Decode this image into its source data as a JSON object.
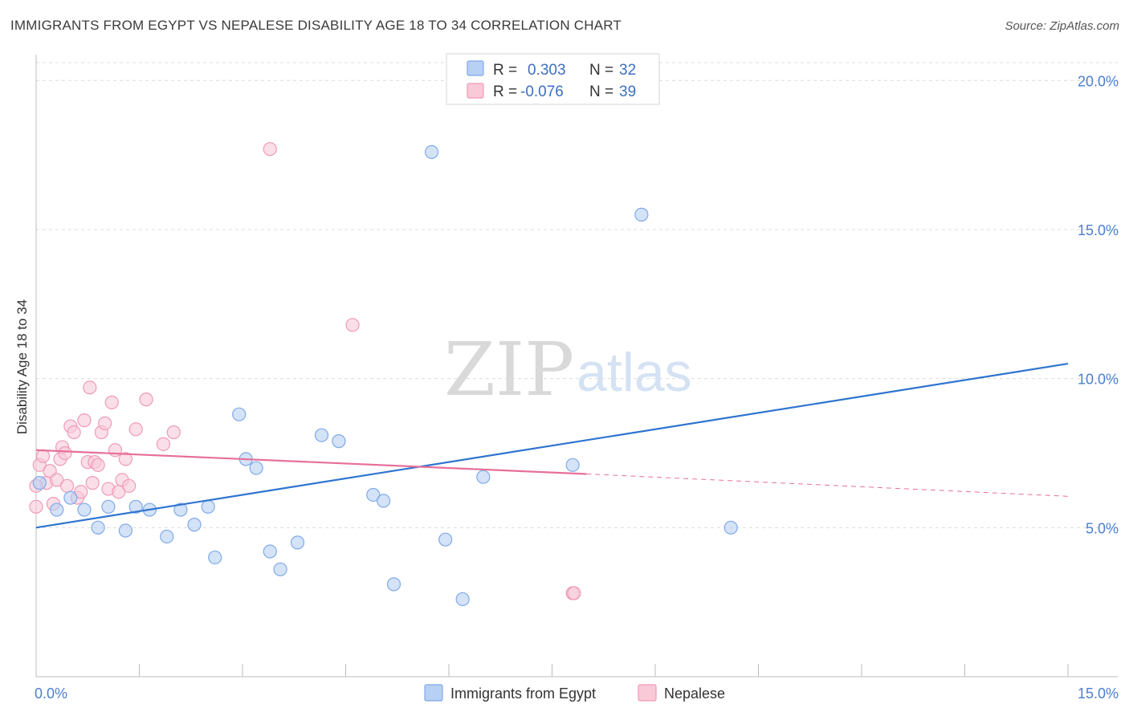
{
  "title": "IMMIGRANTS FROM EGYPT VS NEPALESE DISABILITY AGE 18 TO 34 CORRELATION CHART",
  "source": "Source: ZipAtlas.com",
  "watermark": {
    "zip": "ZIP",
    "atlas": "atlas"
  },
  "legend": {
    "r_label": "R =",
    "n_label": "N =",
    "rows": [
      {
        "r": "0.303",
        "n": "32"
      },
      {
        "r": "-0.076",
        "n": "39"
      }
    ]
  },
  "chart_data": {
    "type": "scatter",
    "title": "IMMIGRANTS FROM EGYPT VS NEPALESE DISABILITY AGE 18 TO 34 CORRELATION CHART",
    "xlabel": "",
    "ylabel": "Disability Age 18 to 34",
    "xlim": [
      0,
      15
    ],
    "ylim": [
      0,
      20.6
    ],
    "x_tick_labels": [
      "0.0%",
      "15.0%"
    ],
    "y_ticks": [
      5,
      10,
      15,
      20
    ],
    "y_tick_labels": [
      "5.0%",
      "10.0%",
      "15.0%",
      "20.0%"
    ],
    "grid": "horizontal dashed",
    "legend_position": "top-center and bottom",
    "series": [
      {
        "name": "Immigrants from Egypt",
        "color": "#7fa9e8",
        "fill": "#b8d0f3",
        "line_color": "#2f74d0",
        "r": 0.303,
        "n": 32,
        "trend": {
          "x": [
            0,
            15
          ],
          "y": [
            5.0,
            10.5
          ]
        },
        "points": [
          [
            0.05,
            6.5
          ],
          [
            0.3,
            5.6
          ],
          [
            0.5,
            6.0
          ],
          [
            0.7,
            5.6
          ],
          [
            0.9,
            5.0
          ],
          [
            1.05,
            5.7
          ],
          [
            1.3,
            4.9
          ],
          [
            1.45,
            5.7
          ],
          [
            1.65,
            5.6
          ],
          [
            1.9,
            4.7
          ],
          [
            2.1,
            5.6
          ],
          [
            2.3,
            5.1
          ],
          [
            2.5,
            5.7
          ],
          [
            2.6,
            4.0
          ],
          [
            2.95,
            8.8
          ],
          [
            3.05,
            7.3
          ],
          [
            3.2,
            7.0
          ],
          [
            3.4,
            4.2
          ],
          [
            3.55,
            3.6
          ],
          [
            3.8,
            4.5
          ],
          [
            4.15,
            8.1
          ],
          [
            4.4,
            7.9
          ],
          [
            4.9,
            6.1
          ],
          [
            5.05,
            5.9
          ],
          [
            5.2,
            3.1
          ],
          [
            5.75,
            17.6
          ],
          [
            5.95,
            4.6
          ],
          [
            6.2,
            2.6
          ],
          [
            6.5,
            6.7
          ],
          [
            7.8,
            7.1
          ],
          [
            8.8,
            15.5
          ],
          [
            10.1,
            5.0
          ]
        ]
      },
      {
        "name": "Nepalese",
        "color": "#f09ab5",
        "fill": "#f9c9d8",
        "line_color": "#e6709a",
        "r": -0.076,
        "n": 39,
        "trend": {
          "x": [
            0,
            8.0
          ],
          "y": [
            7.6,
            6.8
          ],
          "dashed_x": [
            8.0,
            15
          ],
          "dashed_y": [
            6.8,
            6.05
          ]
        },
        "points": [
          [
            0.0,
            5.7
          ],
          [
            0.05,
            7.1
          ],
          [
            0.1,
            7.4
          ],
          [
            0.15,
            6.5
          ],
          [
            0.2,
            6.9
          ],
          [
            0.25,
            5.8
          ],
          [
            0.3,
            6.6
          ],
          [
            0.35,
            7.3
          ],
          [
            0.38,
            7.7
          ],
          [
            0.42,
            7.5
          ],
          [
            0.45,
            6.4
          ],
          [
            0.5,
            8.4
          ],
          [
            0.55,
            8.2
          ],
          [
            0.6,
            6.0
          ],
          [
            0.65,
            6.2
          ],
          [
            0.7,
            8.6
          ],
          [
            0.75,
            7.2
          ],
          [
            0.78,
            9.7
          ],
          [
            0.82,
            6.5
          ],
          [
            0.85,
            7.2
          ],
          [
            0.9,
            7.1
          ],
          [
            0.95,
            8.2
          ],
          [
            1.0,
            8.5
          ],
          [
            1.05,
            6.3
          ],
          [
            1.1,
            9.2
          ],
          [
            1.15,
            7.6
          ],
          [
            1.2,
            6.2
          ],
          [
            1.25,
            6.6
          ],
          [
            1.3,
            7.3
          ],
          [
            1.35,
            6.4
          ],
          [
            1.45,
            8.3
          ],
          [
            1.6,
            9.3
          ],
          [
            1.85,
            7.8
          ],
          [
            2.0,
            8.2
          ],
          [
            3.4,
            17.7
          ],
          [
            4.6,
            11.8
          ],
          [
            7.8,
            2.8
          ],
          [
            7.82,
            2.8
          ],
          [
            0.0,
            6.4
          ]
        ]
      }
    ]
  },
  "bottom_legend": [
    {
      "label": "Immigrants from Egypt",
      "fill": "#b8d0f3",
      "stroke": "#7fa9e8"
    },
    {
      "label": "Nepalese",
      "fill": "#f9c9d8",
      "stroke": "#f09ab5"
    }
  ]
}
